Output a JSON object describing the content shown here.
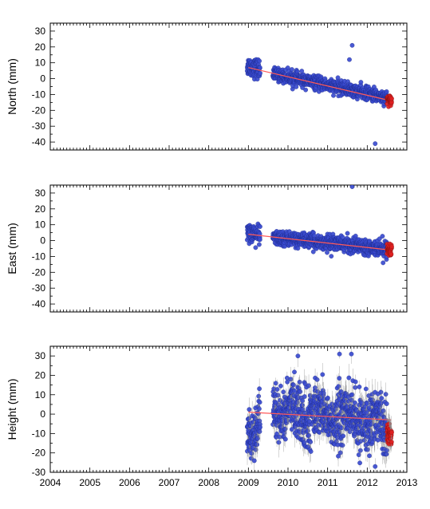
{
  "chart_data": [
    {
      "type": "scatter",
      "ylabel": "North (mm)",
      "xlim": [
        2004,
        2013
      ],
      "ylim": [
        -45,
        35
      ],
      "yticks": [
        30,
        20,
        10,
        0,
        -10,
        -20,
        -30,
        -40
      ],
      "grid": false,
      "colors": {
        "point": "#3a4bd0",
        "point_edge": "#1d2a8a",
        "trend": "#ff5a5a",
        "recent": "#e02020"
      },
      "trend": {
        "x": [
          2009.0,
          2012.6
        ],
        "y": [
          7,
          -14
        ]
      },
      "segments": [
        {
          "x0": 2008.97,
          "x1": 2009.3,
          "y0": 8,
          "y1": 6,
          "sd": 3.0
        },
        {
          "x0": 2009.62,
          "x1": 2012.5,
          "y0": 3,
          "y1": -12,
          "sd": 2.0
        }
      ],
      "recent_segment": {
        "x0": 2012.5,
        "x1": 2012.62,
        "y0": -13,
        "y1": -14,
        "sd": 1.5
      },
      "outliers": [
        {
          "x": 2011.62,
          "y": 21
        },
        {
          "x": 2012.2,
          "y": -41
        },
        {
          "x": 2011.55,
          "y": 12
        }
      ]
    },
    {
      "type": "scatter",
      "ylabel": "East (mm)",
      "xlim": [
        2004,
        2013
      ],
      "ylim": [
        -45,
        35
      ],
      "yticks": [
        30,
        20,
        10,
        0,
        -10,
        -20,
        -30,
        -40
      ],
      "grid": false,
      "colors": {
        "point": "#3a4bd0",
        "point_edge": "#1d2a8a",
        "trend": "#ff5a5a",
        "recent": "#e02020"
      },
      "trend": {
        "x": [
          2009.0,
          2012.6
        ],
        "y": [
          4,
          -6
        ]
      },
      "segments": [
        {
          "x0": 2008.97,
          "x1": 2009.3,
          "y0": 6,
          "y1": 3,
          "sd": 3.0
        },
        {
          "x0": 2009.62,
          "x1": 2012.5,
          "y0": 2,
          "y1": -5,
          "sd": 2.2
        }
      ],
      "recent_segment": {
        "x0": 2012.5,
        "x1": 2012.62,
        "y0": -6,
        "y1": -6,
        "sd": 1.5
      },
      "outliers": [
        {
          "x": 2011.62,
          "y": 34
        },
        {
          "x": 2012.4,
          "y": -14
        }
      ]
    },
    {
      "type": "scatter",
      "ylabel": "Height (mm)",
      "xlim": [
        2004,
        2013
      ],
      "ylim": [
        -30,
        35
      ],
      "yticks": [
        30,
        20,
        10,
        0,
        -10,
        -20,
        -30
      ],
      "xticks": [
        2004,
        2005,
        2006,
        2007,
        2008,
        2009,
        2010,
        2011,
        2012,
        2013
      ],
      "grid": false,
      "colors": {
        "point": "#3a4bd0",
        "point_edge": "#1d2a8a",
        "trend": "#ff5a5a",
        "recent": "#e02020",
        "errorbar": "#8a8a8a"
      },
      "trend": {
        "x": [
          2009.0,
          2012.6
        ],
        "y": [
          1,
          -3
        ]
      },
      "segments": [
        {
          "x0": 2008.97,
          "x1": 2009.3,
          "y0": -5,
          "y1": -8,
          "sd": 7
        },
        {
          "x0": 2009.62,
          "x1": 2012.5,
          "y0": 2,
          "y1": -4,
          "sd": 7
        }
      ],
      "recent_segment": {
        "x0": 2012.5,
        "x1": 2012.62,
        "y0": -10,
        "y1": -12,
        "sd": 3
      },
      "outliers": [
        {
          "x": 2010.25,
          "y": 30
        },
        {
          "x": 2011.3,
          "y": 31
        },
        {
          "x": 2011.6,
          "y": 31
        },
        {
          "x": 2012.2,
          "y": -27
        },
        {
          "x": 2009.15,
          "y": -24
        }
      ]
    }
  ]
}
